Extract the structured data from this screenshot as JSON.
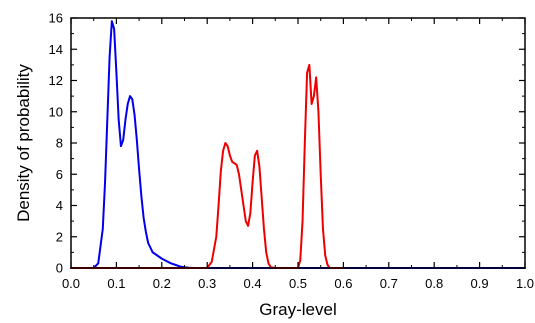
{
  "chart_data": {
    "type": "line",
    "title": "",
    "xlabel": "Gray-level",
    "ylabel": "Density of probability",
    "xlim": [
      0.0,
      1.0
    ],
    "ylim": [
      0,
      16
    ],
    "grid": false,
    "x_ticks": [
      0.0,
      0.1,
      0.2,
      0.3,
      0.4,
      0.5,
      0.6,
      0.7,
      0.8,
      0.9,
      1.0
    ],
    "x_tick_labels": [
      "0.0",
      "0.1",
      "0.2",
      "0.3",
      "0.4",
      "0.5",
      "0.6",
      "0.7",
      "0.8",
      "0.9",
      "1.0"
    ],
    "y_ticks": [
      0,
      2,
      4,
      6,
      8,
      10,
      12,
      14,
      16
    ],
    "y_tick_labels": [
      "0",
      "2",
      "4",
      "6",
      "8",
      "10",
      "12",
      "14",
      "16"
    ],
    "series": [
      {
        "color": "#0000ee",
        "x": [
          0.0,
          0.05,
          0.06,
          0.07,
          0.075,
          0.08,
          0.085,
          0.09,
          0.095,
          0.1,
          0.105,
          0.11,
          0.115,
          0.12,
          0.125,
          0.13,
          0.135,
          0.14,
          0.145,
          0.15,
          0.155,
          0.16,
          0.165,
          0.17,
          0.18,
          0.19,
          0.2,
          0.21,
          0.22,
          0.23,
          0.24,
          0.25,
          0.26,
          0.27,
          0.28,
          0.3,
          1.0
        ],
        "y": [
          0,
          0,
          0.3,
          2.5,
          5.5,
          9.5,
          13.5,
          15.8,
          15.3,
          12.5,
          9.5,
          7.8,
          8.2,
          9.5,
          10.5,
          11.0,
          10.8,
          9.8,
          8.2,
          6.3,
          4.6,
          3.2,
          2.3,
          1.6,
          1.0,
          0.8,
          0.6,
          0.45,
          0.3,
          0.2,
          0.1,
          0.05,
          0.02,
          0.0,
          0,
          0,
          0
        ]
      },
      {
        "color": "#ee0000",
        "x": [
          0.0,
          0.3,
          0.31,
          0.32,
          0.325,
          0.33,
          0.335,
          0.34,
          0.345,
          0.35,
          0.355,
          0.36,
          0.365,
          0.37,
          0.375,
          0.38,
          0.385,
          0.39,
          0.395,
          0.4,
          0.405,
          0.41,
          0.415,
          0.42,
          0.425,
          0.43,
          0.435,
          0.44,
          0.45,
          0.5,
          0.505,
          0.51,
          0.515,
          0.52,
          0.525,
          0.53,
          0.535,
          0.54,
          0.545,
          0.55,
          0.555,
          0.56,
          0.565,
          0.57,
          0.58,
          0.6
        ],
        "y": [
          0,
          0,
          0.4,
          2.0,
          4.0,
          6.2,
          7.5,
          8.0,
          7.8,
          7.2,
          6.8,
          6.7,
          6.6,
          6.0,
          5.0,
          4.0,
          3.0,
          2.7,
          3.5,
          5.5,
          7.2,
          7.5,
          6.5,
          4.5,
          2.5,
          1.0,
          0.3,
          0.05,
          0,
          0,
          0.5,
          3.0,
          8.0,
          12.5,
          13.0,
          10.5,
          11.0,
          12.2,
          10.0,
          6.0,
          2.5,
          0.8,
          0.2,
          0.0,
          0,
          0
        ]
      }
    ]
  }
}
